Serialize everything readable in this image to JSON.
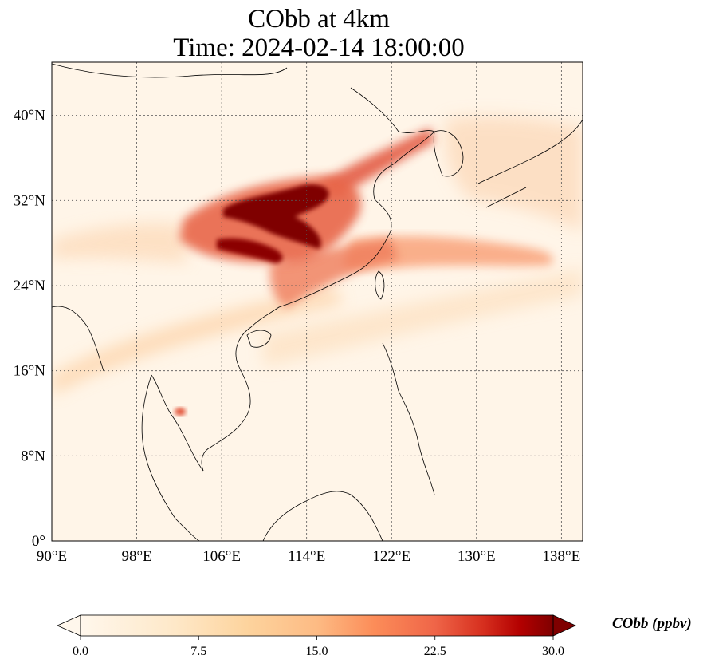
{
  "title": {
    "line1": "CObb at 4km",
    "line2": "Time: 2024-02-14 18:00:00"
  },
  "map": {
    "extent_lon": [
      90,
      140
    ],
    "extent_lat": [
      0,
      45
    ],
    "lon_ticks": [
      {
        "value": 90,
        "label": "90°E"
      },
      {
        "value": 98,
        "label": "98°E"
      },
      {
        "value": 106,
        "label": "106°E"
      },
      {
        "value": 114,
        "label": "114°E"
      },
      {
        "value": 122,
        "label": "122°E"
      },
      {
        "value": 130,
        "label": "130°E"
      },
      {
        "value": 138,
        "label": "138°E"
      }
    ],
    "lat_ticks": [
      {
        "value": 0,
        "label": "0°"
      },
      {
        "value": 8,
        "label": "8°N"
      },
      {
        "value": 16,
        "label": "16°N"
      },
      {
        "value": 24,
        "label": "24°N"
      },
      {
        "value": 32,
        "label": "32°N"
      },
      {
        "value": 40,
        "label": "40°N"
      }
    ],
    "gridlines": true
  },
  "colorbar": {
    "label": "CObb (ppbv)",
    "min": 0.0,
    "max": 30.0,
    "extend": "both",
    "colormap": "OrRd",
    "ticks": [
      {
        "value": 0.0,
        "label": "0.0"
      },
      {
        "value": 7.5,
        "label": "7.5"
      },
      {
        "value": 15.0,
        "label": "15.0"
      },
      {
        "value": 22.5,
        "label": "22.5"
      },
      {
        "value": 30.0,
        "label": "30.0"
      }
    ],
    "colors": {
      "low": "#fff7ec",
      "mid_low": "#fdd49e",
      "mid": "#fc8d59",
      "mid_high": "#d7301f",
      "high": "#7f0000"
    }
  },
  "plumes": [
    {
      "name": "central-china-core",
      "lon": [
        108,
        118.5
      ],
      "lat": [
        28.5,
        33.5
      ],
      "value": 30
    },
    {
      "name": "sichuan-lower-core",
      "lon": [
        106.5,
        111
      ],
      "lat": [
        26.5,
        28.5
      ],
      "value": 30
    },
    {
      "name": "yellow-sea-band",
      "lon": [
        114,
        126
      ],
      "lat": [
        33,
        38
      ],
      "value": 25
    },
    {
      "name": "east-china-sea-band",
      "lon": [
        117,
        137
      ],
      "lat": [
        24,
        29
      ],
      "value": 15
    },
    {
      "name": "south-coast-band",
      "lon": [
        112,
        122
      ],
      "lat": [
        22,
        26
      ],
      "value": 18
    },
    {
      "name": "southwest-band",
      "lon": [
        90,
        106
      ],
      "lat": [
        14,
        22
      ],
      "value": 9
    },
    {
      "name": "cambodia-hotspot",
      "lon": [
        101.5,
        103
      ],
      "lat": [
        12,
        13
      ],
      "value": 20
    }
  ]
}
